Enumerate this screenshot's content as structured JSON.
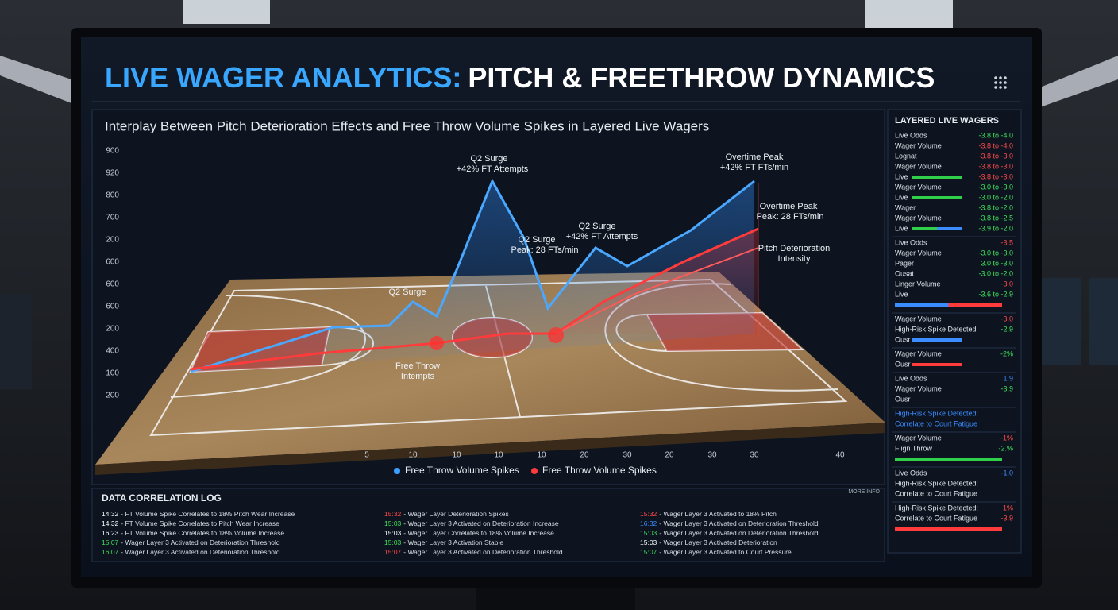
{
  "header": {
    "title_lead": "LIVE WAGER ANALYTICS:",
    "title_rest": "PITCH & FREETHROW DYNAMICS"
  },
  "chart": {
    "subtitle": "Interplay Between Pitch Deterioration Effects and Free Throw Volume Spikes in Layered Live Wagers",
    "y_axis_labels": [
      "900",
      "920",
      "800",
      "700",
      "200",
      "600",
      "600",
      "600",
      "200",
      "400",
      "100",
      "200"
    ],
    "x_axis_labels": [
      "5",
      "10",
      "10",
      "10",
      "10",
      "20",
      "30",
      "20",
      "30",
      "30",
      "40"
    ],
    "annotations": [
      "Q2 Surge",
      "+42% FT Attempts",
      "Overtime Peak",
      "+42% FT FTs/min",
      "Q2 Surge",
      "Peak: 28 FTs/min",
      "Q2 Surge",
      "+42% FT Attempts",
      "Overtime Peak",
      "Peak: 28 FTs/min",
      "Pitch Deterioration",
      "Intensity",
      "Q2 Surge",
      "Free Throw",
      "Intempts"
    ],
    "legend": [
      {
        "name": "Free Throw Volume Spikes",
        "color": "#3aa0ff"
      },
      {
        "name": "Free Throw Volume Spikes",
        "color": "#ff3b3b"
      }
    ]
  },
  "side_panel": {
    "title": "LAYERED LIVE WAGERS",
    "groups": [
      [
        {
          "label": "Live Odds",
          "value": "-3.8 to -4.0",
          "color": "#3ee05a"
        },
        {
          "label": "Wager Volume",
          "value": "-3.8 to -4.0",
          "color": "#ff4a4a"
        },
        {
          "label": "Lognat",
          "value": "-3.8 to -3.0",
          "color": "#ff4a4a"
        },
        {
          "label": "Wager Volume",
          "value": "-3.8 to -3.0",
          "color": "#ff4a4a"
        },
        {
          "label": "Live",
          "value": "-3.8 to -3.0",
          "color": "#ff4a4a",
          "bar": [
            "#2fcf4a"
          ]
        },
        {
          "label": "Wager Volume",
          "value": "-3.0 to -3.0",
          "color": "#3ee05a"
        },
        {
          "label": "Live",
          "value": "-3.0 to -2.0",
          "color": "#3ee05a",
          "bar": [
            "#2fcf4a"
          ]
        },
        {
          "label": "Wager",
          "value": "-3.8 to -2.0",
          "color": "#3ee05a"
        },
        {
          "label": "Wager Volume",
          "value": "-3.8 to -2.5",
          "color": "#3ee05a"
        },
        {
          "label": "Live",
          "value": "-3.9 to -2.0",
          "color": "#3ee05a",
          "bar": [
            "#2fcf4a",
            "#3a8cff"
          ]
        }
      ],
      [
        {
          "label": "Live Odds",
          "value": "-3.5",
          "color": "#ff4a4a"
        },
        {
          "label": "Wager Volume",
          "value": "-3.0 to -3.0",
          "color": "#3ee05a"
        },
        {
          "label": "Pager",
          "value": "3.0 to -3.0",
          "color": "#3ee05a"
        },
        {
          "label": "Ousat",
          "value": "-3.0 to -2.0",
          "color": "#3ee05a"
        },
        {
          "label": "Linger Volume",
          "value": "-3.0",
          "color": "#ff4a4a"
        },
        {
          "label": "Live",
          "value": "-3.6 to -2.9",
          "color": "#3ee05a"
        },
        {
          "bar": [
            "#3a8cff",
            "#ff3b3b"
          ]
        }
      ],
      [
        {
          "label": "Wager Volume",
          "value": "-3.0",
          "color": "#ff4a4a"
        },
        {
          "label": "High-Risk Spike Detected",
          "value": "-2.9",
          "color": "#3ee05a"
        },
        {
          "label": "Ousr",
          "bar": [
            "#3a8cff"
          ]
        }
      ],
      [
        {
          "label": "Wager Volume",
          "value": "-2%",
          "color": "#3ee05a"
        },
        {
          "label": "Ousr",
          "bar": [
            "#ff3b3b"
          ]
        }
      ],
      [
        {
          "label": "Live Odds",
          "value": "1.9",
          "color": "#3a8cff"
        },
        {
          "label": "Wager Volume",
          "value": "-3.9",
          "color": "#3ee05a"
        },
        {
          "label": "Ousr"
        }
      ],
      [
        {
          "label": "High-Risk Spike Detected:",
          "color": "#3a8cff"
        },
        {
          "label": "Correlate to Court Fatigue",
          "color": "#3a8cff"
        }
      ],
      [
        {
          "label": "Wager Volume",
          "value": "-1%",
          "color": "#ff4a4a"
        },
        {
          "label": "Flign Throw",
          "value": "-2.%",
          "color": "#3ee05a"
        },
        {
          "bar": [
            "#2fcf4a"
          ]
        }
      ],
      [
        {
          "label": "Live Odds",
          "value": "-1.0",
          "color": "#3a8cff"
        },
        {
          "label": "High-Risk Spike Detected:"
        },
        {
          "label": "Correlate to Court Fatigue"
        }
      ],
      [
        {
          "label": "High-Risk Spike Detected:",
          "value": "1%",
          "color": "#ff4a4a"
        },
        {
          "label": "Correlate to Court Fatigue",
          "value": "-3.9",
          "color": "#ff4a4a"
        },
        {
          "bar": [
            "#ff3b3b"
          ]
        }
      ]
    ]
  },
  "log": {
    "title": "DATA CORRELATION LOG",
    "more": "MORE INFO",
    "columns": [
      [
        {
          "time": "14:32",
          "text": "- FT Volume Spike Correlates to 18% Pitch Wear Increase",
          "color": "#ffffff"
        },
        {
          "time": "14:32",
          "text": "- FT Volume Spike Correlates to Pitch Wear Increase",
          "color": "#ffffff"
        },
        {
          "time": "16:23",
          "text": "- FT Volume Spike Correlates to 18% Volume Increase",
          "color": "#ffffff"
        },
        {
          "time": "15:07",
          "text": "- Wager Layer 3 Activated on Deterioration Threshold",
          "color": "#3ee05a"
        },
        {
          "time": "16:07",
          "text": "- Wager Layer 3 Activated on Deterioration Threshold",
          "color": "#3ee05a"
        }
      ],
      [
        {
          "time": "15:32",
          "text": "- Wager Layer Deterioration Spikes",
          "color": "#ff4a4a"
        },
        {
          "time": "15:03",
          "text": "- Wager Layer 3 Activated on Deterioration Increase",
          "color": "#3ee05a"
        },
        {
          "time": "15:03",
          "text": "- Wager Layer Correlates to 18% Volume Increase",
          "color": "#ffffff"
        },
        {
          "time": "15:03",
          "text": "- Wager Layer 3 Activation Stable",
          "color": "#3ee05a"
        },
        {
          "time": "15:07",
          "text": "- Wager Layer 3 Activated on Deterioration Threshold",
          "color": "#ff4a4a"
        }
      ],
      [
        {
          "time": "15:32",
          "text": "- Wager Layer 3 Activated to 18% Pitch",
          "color": "#ff4a4a"
        },
        {
          "time": "16:32",
          "text": "- Wager Layer 3 Activated on Deterioration Threshold",
          "color": "#3a8cff"
        },
        {
          "time": "15:03",
          "text": "- Wager Layer 3 Activated on Deterioration Threshold",
          "color": "#3ee05a"
        },
        {
          "time": "15:03",
          "text": "- Wager Layer 3 Activated Deterioration",
          "color": "#ffffff"
        },
        {
          "time": "15:07",
          "text": "- Wager Layer 3 Activated to Court Pressure",
          "color": "#3ee05a"
        }
      ]
    ]
  }
}
